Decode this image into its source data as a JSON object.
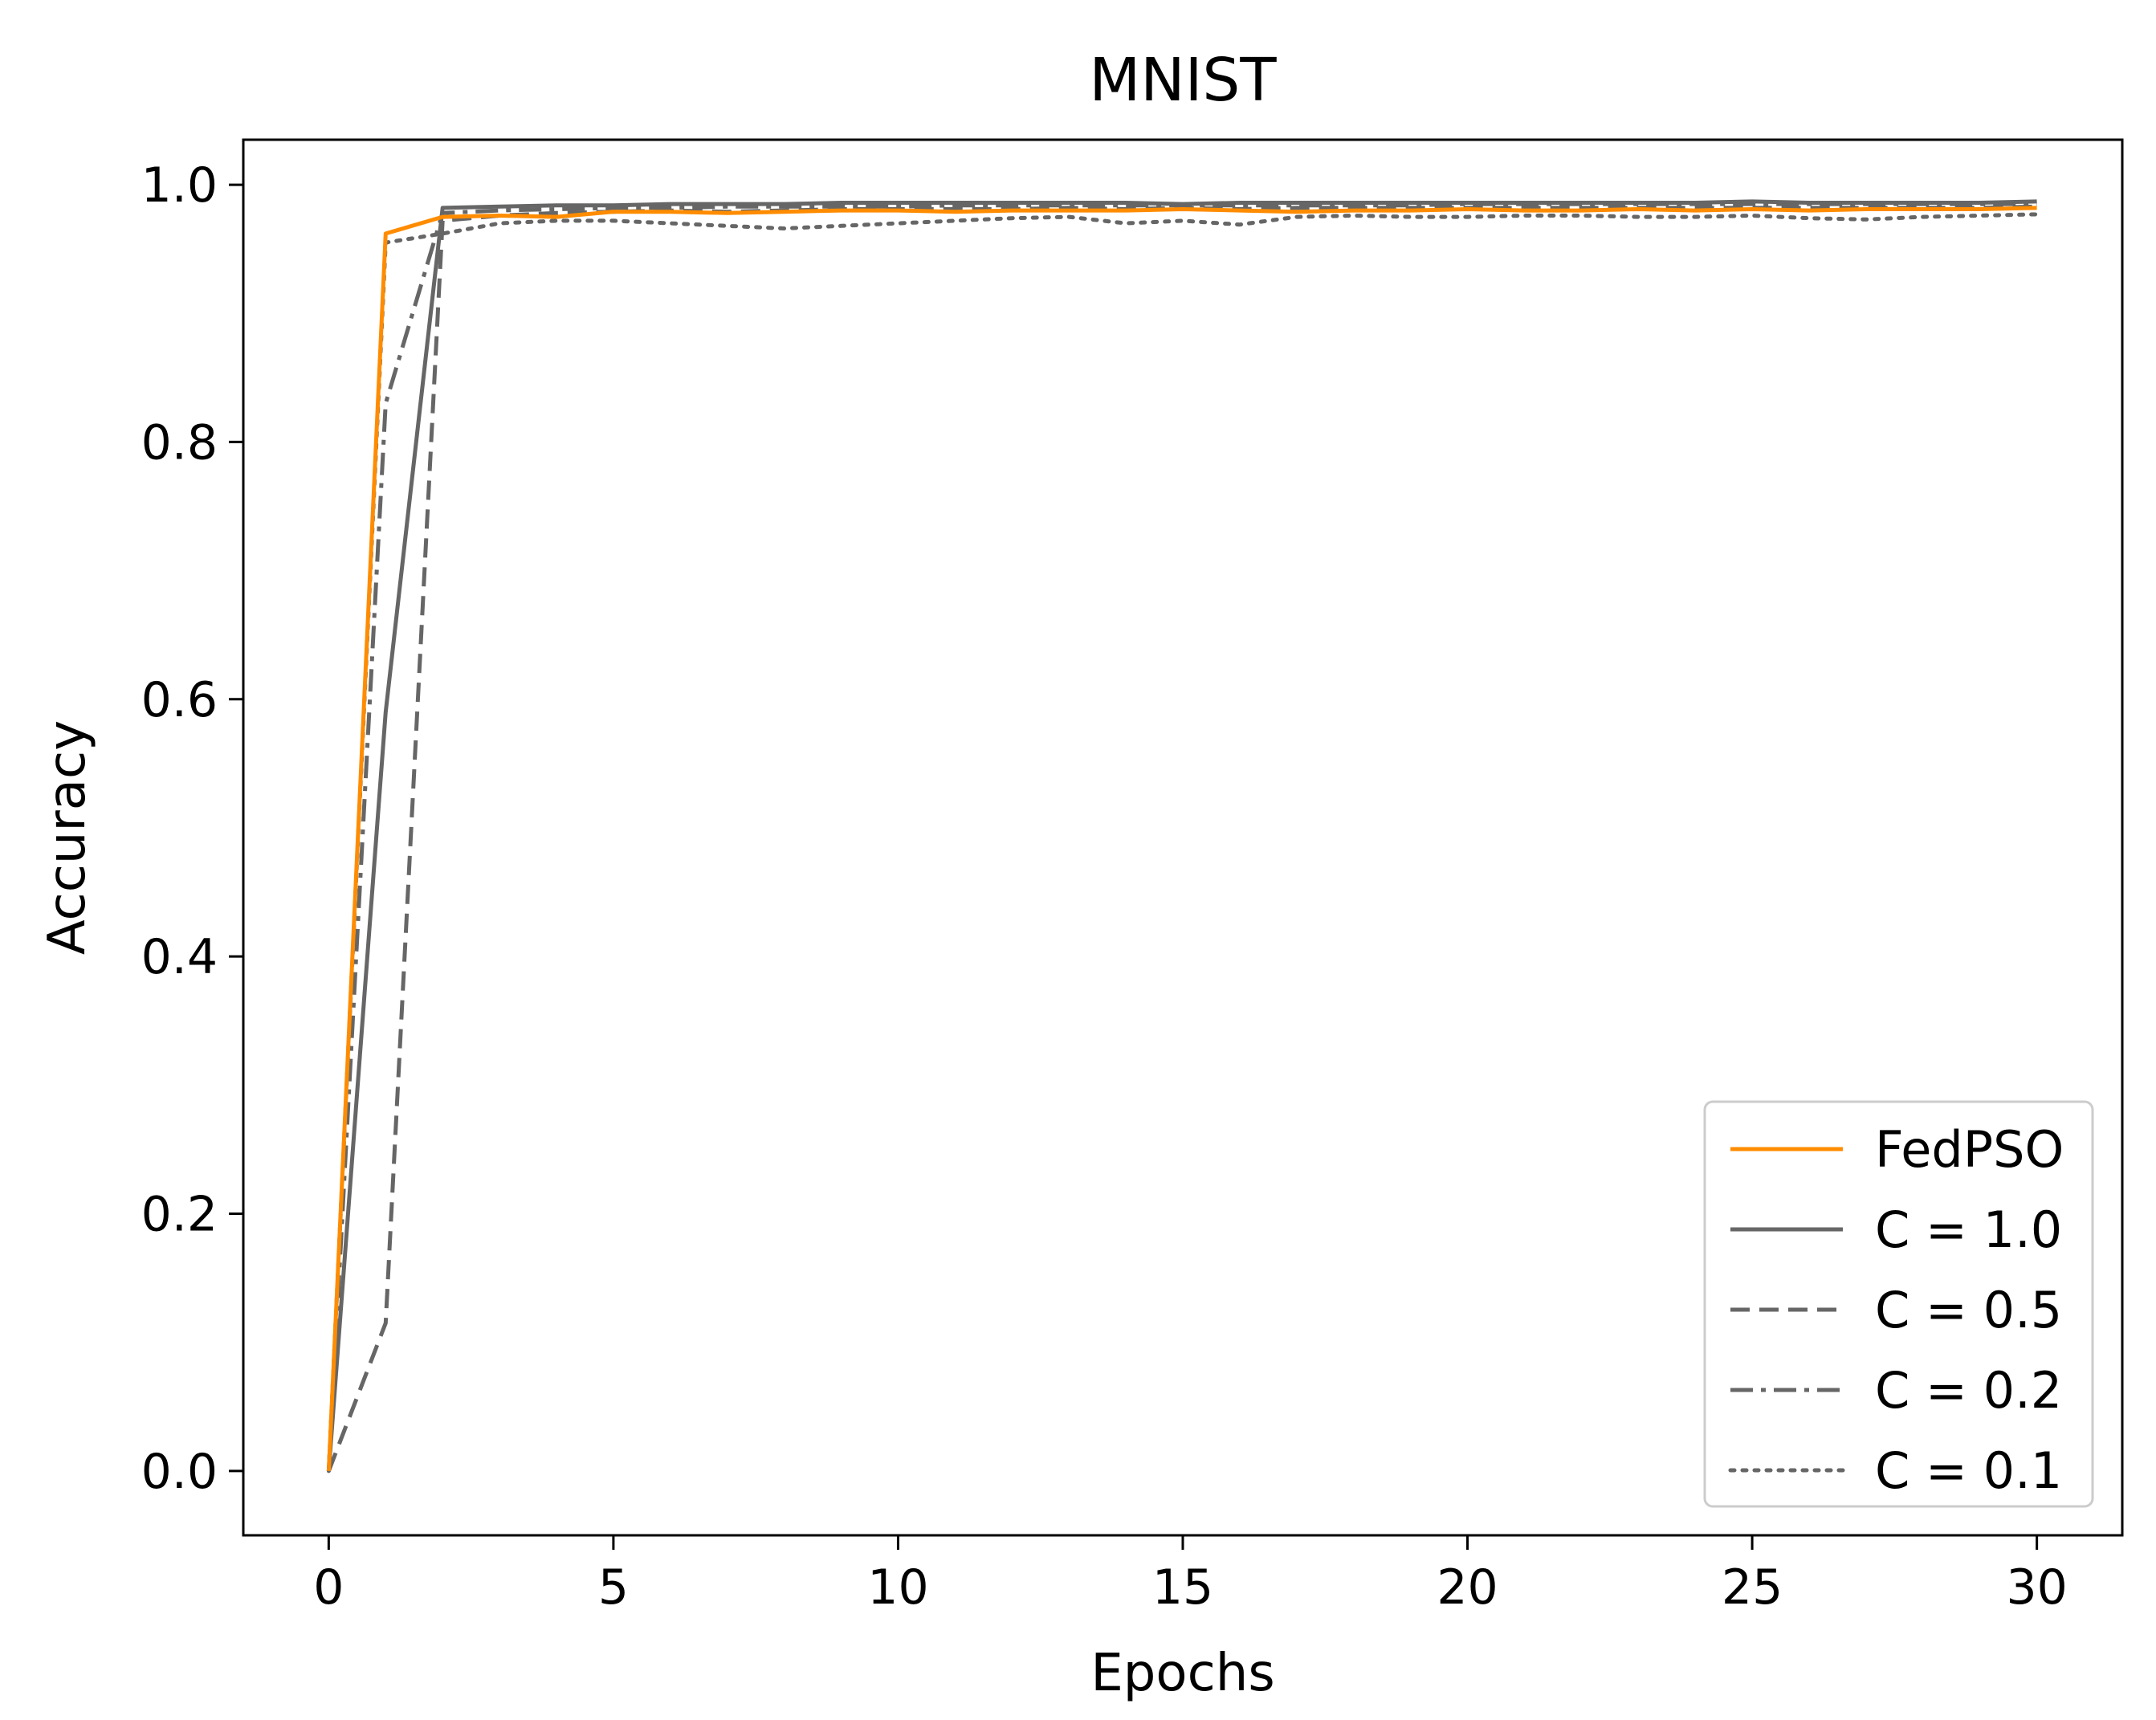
{
  "chart_data": {
    "type": "line",
    "title": "MNIST",
    "xlabel": "Epochs",
    "ylabel": "Accuracy",
    "xlim": [
      -1.5,
      31.5
    ],
    "ylim": [
      -0.05,
      1.035
    ],
    "xticks": [
      0,
      5,
      10,
      15,
      20,
      25,
      30
    ],
    "xtick_labels": [
      "0",
      "5",
      "10",
      "15",
      "20",
      "25",
      "30"
    ],
    "yticks": [
      0.0,
      0.2,
      0.4,
      0.6,
      0.8,
      1.0
    ],
    "ytick_labels": [
      "0.0",
      "0.2",
      "0.4",
      "0.6",
      "0.8",
      "1.0"
    ],
    "grid": false,
    "legend_position": "lower-right",
    "x": [
      0,
      1,
      2,
      3,
      4,
      5,
      6,
      7,
      8,
      9,
      10,
      11,
      12,
      13,
      14,
      15,
      16,
      17,
      18,
      19,
      20,
      21,
      22,
      23,
      24,
      25,
      26,
      27,
      28,
      29,
      30
    ],
    "series": [
      {
        "name": "FedPSO",
        "color": "#ff8c00",
        "dash": "solid",
        "values": [
          0.0,
          0.962,
          0.975,
          0.976,
          0.975,
          0.979,
          0.979,
          0.978,
          0.979,
          0.98,
          0.98,
          0.979,
          0.98,
          0.98,
          0.98,
          0.981,
          0.98,
          0.979,
          0.98,
          0.98,
          0.981,
          0.98,
          0.98,
          0.981,
          0.98,
          0.981,
          0.98,
          0.981,
          0.981,
          0.981,
          0.982
        ]
      },
      {
        "name": "C = 1.0",
        "color": "#666666",
        "dash": "solid",
        "values": [
          0.0,
          0.59,
          0.982,
          0.983,
          0.984,
          0.984,
          0.985,
          0.985,
          0.985,
          0.986,
          0.986,
          0.986,
          0.986,
          0.986,
          0.986,
          0.985,
          0.986,
          0.986,
          0.986,
          0.986,
          0.986,
          0.986,
          0.986,
          0.986,
          0.986,
          0.987,
          0.986,
          0.986,
          0.986,
          0.986,
          0.987
        ]
      },
      {
        "name": "C = 0.5",
        "color": "#666666",
        "dash": "dashed",
        "values": [
          0.0,
          0.115,
          0.972,
          0.976,
          0.978,
          0.979,
          0.98,
          0.979,
          0.98,
          0.981,
          0.981,
          0.981,
          0.981,
          0.982,
          0.981,
          0.982,
          0.981,
          0.982,
          0.982,
          0.982,
          0.982,
          0.982,
          0.982,
          0.982,
          0.982,
          0.982,
          0.982,
          0.982,
          0.982,
          0.982,
          0.983
        ]
      },
      {
        "name": "C = 0.2",
        "color": "#666666",
        "dash": "dashdot",
        "values": [
          0.0,
          0.83,
          0.978,
          0.98,
          0.981,
          0.982,
          0.982,
          0.983,
          0.983,
          0.983,
          0.983,
          0.984,
          0.984,
          0.984,
          0.984,
          0.984,
          0.984,
          0.984,
          0.984,
          0.984,
          0.985,
          0.985,
          0.985,
          0.985,
          0.985,
          0.985,
          0.985,
          0.985,
          0.985,
          0.985,
          0.985
        ]
      },
      {
        "name": "C = 0.1",
        "color": "#666666",
        "dash": "dotted",
        "values": [
          0.0,
          0.955,
          0.962,
          0.97,
          0.972,
          0.972,
          0.97,
          0.968,
          0.966,
          0.968,
          0.97,
          0.972,
          0.974,
          0.975,
          0.97,
          0.972,
          0.969,
          0.975,
          0.976,
          0.975,
          0.975,
          0.976,
          0.976,
          0.975,
          0.975,
          0.976,
          0.974,
          0.973,
          0.975,
          0.976,
          0.977
        ]
      }
    ]
  }
}
